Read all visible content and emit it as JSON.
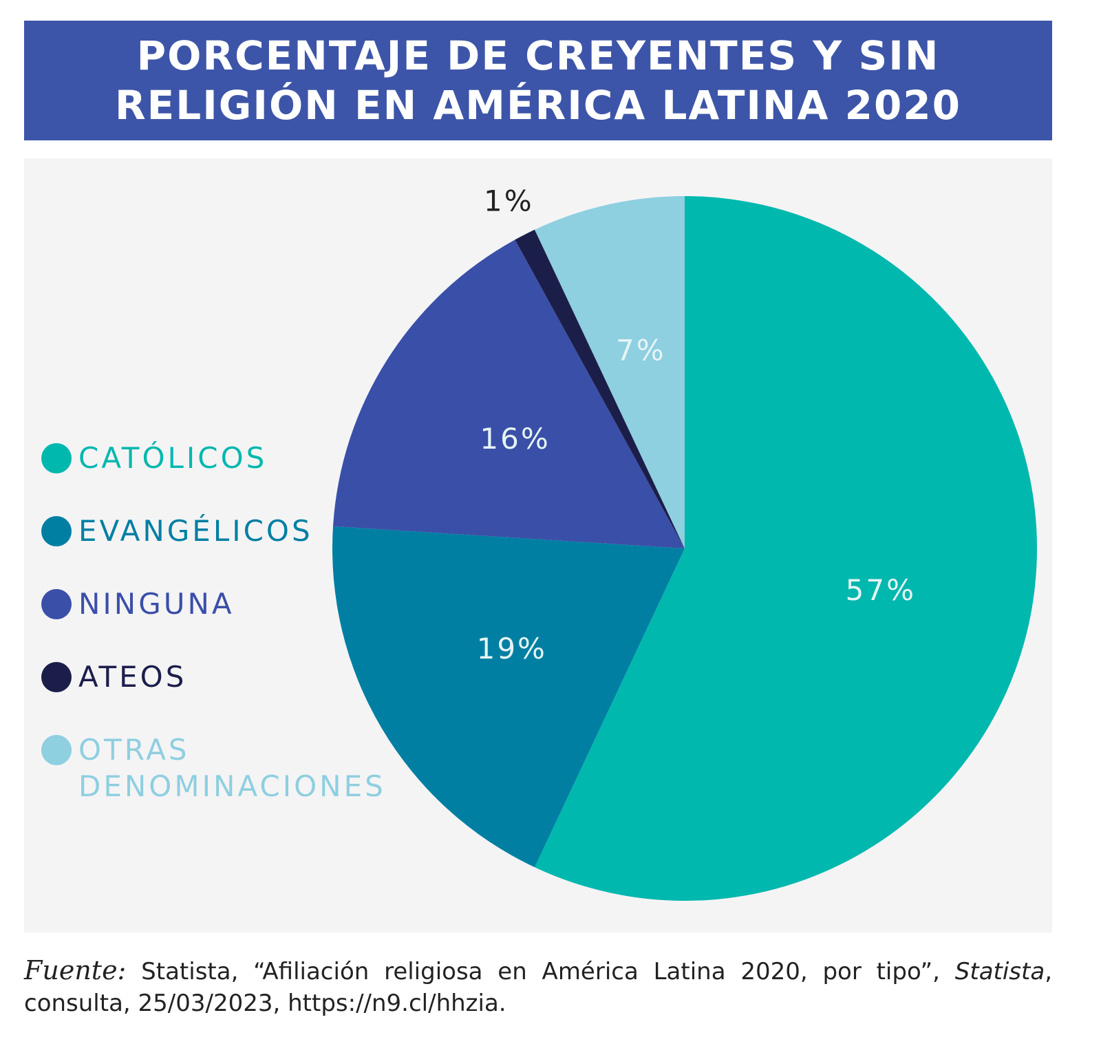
{
  "chart_data": {
    "type": "pie",
    "title": "PORCENTAJE DE CREYENTES Y SIN RELIGIÓN EN AMÉRICA LATINA 2020",
    "categories": [
      "CATÓLICOS",
      "EVANGÉLICOS",
      "NINGUNA",
      "ATEOS",
      "OTRAS DENOMINACIONES"
    ],
    "values": [
      57,
      19,
      16,
      1,
      7
    ],
    "value_labels": [
      "57%",
      "19%",
      "16%",
      "1%",
      "7%"
    ],
    "colors": [
      "#00b8ae",
      "#007fa3",
      "#3a4fa8",
      "#1c1e4a",
      "#8ecfe0"
    ]
  },
  "source": {
    "prefix": "Fuente:",
    "part1": "Statista, “Afiliación religiosa en América Latina 2020, por tipo”,",
    "italic": "Statista",
    "part2": ", consulta, 25/03/2023, https://n9.cl/hhzia."
  }
}
